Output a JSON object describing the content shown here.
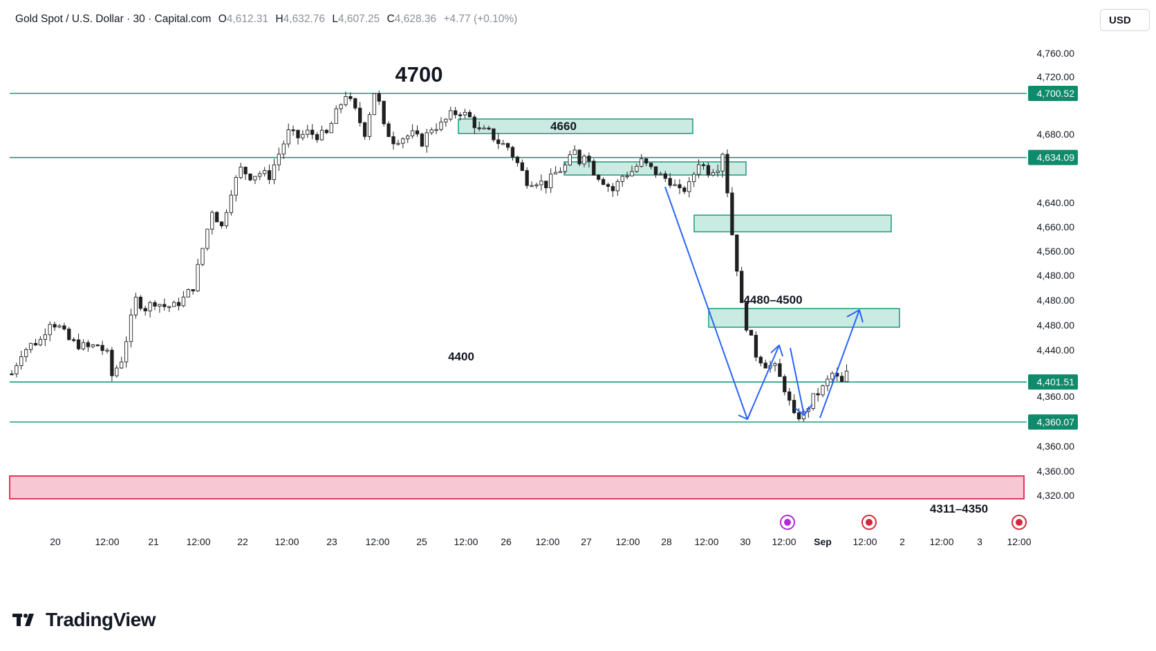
{
  "header": {
    "symbol": "Gold Spot / U.S. Dollar · 30 · Capital.com",
    "open_key": "O",
    "open": "4,612.31",
    "high_key": "H",
    "high": "4,632.76",
    "low_key": "L",
    "low": "4,607.25",
    "close_key": "C",
    "close": "4,628.36",
    "change": "+4.77 (+0.10%)"
  },
  "currency_button": "USD",
  "brand": "TradingView",
  "colors": {
    "level_line": "#1a9a7f",
    "zone_fill": "#c9ebe1",
    "zone_border": "#1a9a7f",
    "red_zone_fill": "#f8c7d4",
    "red_zone_border": "#e0234e",
    "price_tag": "#0f8a6b",
    "arrow": "#2962ff",
    "candle": "#1f1f1f"
  },
  "chart_data": {
    "type": "candlestick",
    "price_axis_labels": [
      "4,760.00",
      "4,720.00",
      "4,680.00",
      "4,680.00",
      "4,640.00",
      "4,660.00",
      "4,560.00",
      "4,480.00",
      "4,480.00",
      "4,480.00",
      "4,440.00",
      "4,360.00",
      "4,360.00",
      "4,360.00",
      "4,320.00"
    ],
    "time_axis_labels": [
      "20",
      "12:00",
      "21",
      "12:00",
      "22",
      "12:00",
      "23",
      "12:00",
      "25",
      "12:00",
      "26",
      "12:00",
      "27",
      "12:00",
      "28",
      "12:00",
      "30",
      "12:00",
      "Sep",
      "12:00",
      "2",
      "12:00",
      "3",
      "12:00"
    ],
    "price_tags": [
      {
        "label": "4,700.52",
        "price": 4700.52
      },
      {
        "label": "4,634.09",
        "price": 4634.09
      },
      {
        "label": "4,401.51",
        "price": 4401.51
      },
      {
        "label": "4,360.07",
        "price": 4360.07
      }
    ],
    "annotations": [
      {
        "text": "4700",
        "type": "title-level"
      },
      {
        "text": "4660",
        "type": "zone-label"
      },
      {
        "text": "4480–4500",
        "type": "zone-label"
      },
      {
        "text": "4400",
        "type": "level-label"
      },
      {
        "text": "4311–4350",
        "type": "zone-label"
      }
    ],
    "close_path": [
      {
        "t": 0,
        "c": 4410
      },
      {
        "t": 2,
        "c": 4432
      },
      {
        "t": 4,
        "c": 4440
      },
      {
        "t": 6,
        "c": 4445
      },
      {
        "t": 8,
        "c": 4465
      },
      {
        "t": 10,
        "c": 4458
      },
      {
        "t": 12,
        "c": 4445
      },
      {
        "t": 14,
        "c": 4440
      },
      {
        "t": 16,
        "c": 4437
      },
      {
        "t": 18,
        "c": 4440
      },
      {
        "t": 20,
        "c": 4430
      },
      {
        "t": 21,
        "c": 4408
      },
      {
        "t": 23,
        "c": 4425
      },
      {
        "t": 26,
        "c": 4487
      },
      {
        "t": 28,
        "c": 4478
      },
      {
        "t": 30,
        "c": 4485
      },
      {
        "t": 32,
        "c": 4480
      },
      {
        "t": 34,
        "c": 4480
      },
      {
        "t": 36,
        "c": 4488
      },
      {
        "t": 38,
        "c": 4500
      },
      {
        "t": 40,
        "c": 4540
      },
      {
        "t": 42,
        "c": 4580
      },
      {
        "t": 44,
        "c": 4562
      },
      {
        "t": 46,
        "c": 4600
      },
      {
        "t": 48,
        "c": 4622
      },
      {
        "t": 50,
        "c": 4615
      },
      {
        "t": 52,
        "c": 4618
      },
      {
        "t": 54,
        "c": 4615
      },
      {
        "t": 56,
        "c": 4638
      },
      {
        "t": 58,
        "c": 4660
      },
      {
        "t": 60,
        "c": 4655
      },
      {
        "t": 62,
        "c": 4660
      },
      {
        "t": 64,
        "c": 4657
      },
      {
        "t": 66,
        "c": 4658
      },
      {
        "t": 68,
        "c": 4680
      },
      {
        "t": 70,
        "c": 4700
      },
      {
        "t": 72,
        "c": 4682
      },
      {
        "t": 74,
        "c": 4660
      },
      {
        "t": 76,
        "c": 4702
      },
      {
        "t": 77,
        "c": 4690
      },
      {
        "t": 78,
        "c": 4665
      },
      {
        "t": 80,
        "c": 4652
      },
      {
        "t": 82,
        "c": 4655
      },
      {
        "t": 84,
        "c": 4658
      },
      {
        "t": 86,
        "c": 4650
      },
      {
        "t": 88,
        "c": 4665
      },
      {
        "t": 90,
        "c": 4668
      },
      {
        "t": 92,
        "c": 4678
      },
      {
        "t": 94,
        "c": 4682
      },
      {
        "t": 96,
        "c": 4675
      },
      {
        "t": 98,
        "c": 4662
      },
      {
        "t": 100,
        "c": 4660
      },
      {
        "t": 102,
        "c": 4650
      },
      {
        "t": 104,
        "c": 4645
      },
      {
        "t": 106,
        "c": 4628
      },
      {
        "t": 108,
        "c": 4610
      },
      {
        "t": 110,
        "c": 4610
      },
      {
        "t": 112,
        "c": 4606
      },
      {
        "t": 114,
        "c": 4618
      },
      {
        "t": 116,
        "c": 4625
      },
      {
        "t": 118,
        "c": 4640
      },
      {
        "t": 119,
        "c": 4630
      },
      {
        "t": 120,
        "c": 4640
      },
      {
        "t": 122,
        "c": 4620
      },
      {
        "t": 124,
        "c": 4610
      },
      {
        "t": 126,
        "c": 4600
      },
      {
        "t": 128,
        "c": 4615
      },
      {
        "t": 130,
        "c": 4620
      },
      {
        "t": 132,
        "c": 4630
      },
      {
        "t": 134,
        "c": 4622
      },
      {
        "t": 136,
        "c": 4615
      },
      {
        "t": 138,
        "c": 4610
      },
      {
        "t": 140,
        "c": 4598
      },
      {
        "t": 142,
        "c": 4605
      },
      {
        "t": 144,
        "c": 4630
      },
      {
        "t": 146,
        "c": 4620
      },
      {
        "t": 148,
        "c": 4625
      },
      {
        "t": 149,
        "c": 4640
      },
      {
        "t": 150,
        "c": 4600
      },
      {
        "t": 151,
        "c": 4555
      },
      {
        "t": 152,
        "c": 4520
      },
      {
        "t": 153,
        "c": 4480
      },
      {
        "t": 154,
        "c": 4460
      },
      {
        "t": 156,
        "c": 4430
      },
      {
        "t": 158,
        "c": 4420
      },
      {
        "t": 160,
        "c": 4416
      },
      {
        "t": 162,
        "c": 4395
      },
      {
        "t": 164,
        "c": 4365
      },
      {
        "t": 166,
        "c": 4368
      },
      {
        "t": 168,
        "c": 4385
      },
      {
        "t": 170,
        "c": 4395
      },
      {
        "t": 172,
        "c": 4410
      },
      {
        "t": 174,
        "c": 4400
      },
      {
        "t": 175,
        "c": 4410
      },
      {
        "t": 176,
        "c": 4380
      }
    ]
  }
}
